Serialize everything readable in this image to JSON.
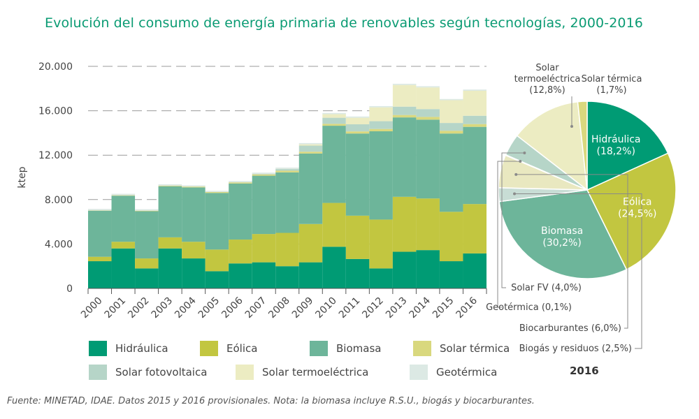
{
  "title": "Evolución del consumo de energía primaria de renovables según tecnologías, 2000-2016",
  "footnote": "Fuente: MINETAD, IDAE. Datos 2015 y 2016 provisionales. Nota: la biomasa incluye R.S.U., biogás y biocarburantes.",
  "colors": {
    "Hidráulica": "#009b74",
    "Eólica": "#c2c640",
    "Biomasa": "#6db59a",
    "Solar térmica": "#d9d87e",
    "Solar fotovoltaica": "#b6d5c8",
    "Solar termoeléctrica": "#ececc2",
    "Geotérmica": "#dce9e4",
    "Biocarburantes": "#e9e8c0",
    "Biogás y residuos": "#c8ddd5"
  },
  "legend": [
    {
      "name": "Hidráulica"
    },
    {
      "name": "Eólica"
    },
    {
      "name": "Biomasa"
    },
    {
      "name": "Solar térmica"
    },
    {
      "name": "Solar fotovoltaica"
    },
    {
      "name": "Solar termoeléctrica"
    },
    {
      "name": "Geotérmica"
    }
  ],
  "chart_data": [
    {
      "type": "bar",
      "stacked": true,
      "ylabel": "ktep",
      "ylim": [
        0,
        20000
      ],
      "yticks": [
        "0",
        "4.000",
        "8.000",
        "12.000",
        "16.000",
        "20.000"
      ],
      "grid": "dashed horizontal lines",
      "categories": [
        "2000",
        "2001",
        "2002",
        "2003",
        "2004",
        "2005",
        "2006",
        "2007",
        "2008",
        "2009",
        "2010",
        "2011",
        "2012",
        "2013",
        "2014",
        "2015",
        "2016"
      ],
      "series": [
        {
          "name": "Hidráulica",
          "values": [
            2450,
            3600,
            1800,
            3600,
            2700,
            1550,
            2250,
            2350,
            2000,
            2350,
            3750,
            2650,
            1800,
            3300,
            3450,
            2450,
            3150
          ]
        },
        {
          "name": "Eólica",
          "values": [
            400,
            600,
            900,
            1000,
            1500,
            1950,
            2150,
            2550,
            3000,
            3450,
            3950,
            3900,
            4400,
            4950,
            4650,
            4450,
            4450
          ]
        },
        {
          "name": "Biomasa",
          "values": [
            4150,
            4150,
            4250,
            4600,
            4900,
            5100,
            5050,
            5250,
            5450,
            6350,
            6950,
            7400,
            7950,
            7150,
            7100,
            7050,
            6950
          ]
        },
        {
          "name": "Solar térmica",
          "values": [
            30,
            40,
            50,
            60,
            70,
            80,
            100,
            120,
            150,
            160,
            170,
            190,
            210,
            220,
            250,
            250,
            250
          ]
        },
        {
          "name": "Solar fotovoltaica",
          "values": [
            0,
            0,
            0,
            0,
            0,
            0,
            10,
            40,
            150,
            550,
            550,
            640,
            700,
            750,
            700,
            700,
            750
          ]
        },
        {
          "name": "Solar termoeléctrica",
          "values": [
            0,
            0,
            0,
            0,
            0,
            0,
            0,
            10,
            20,
            120,
            320,
            590,
            1250,
            1950,
            1950,
            2050,
            2250
          ]
        },
        {
          "name": "Geotérmica",
          "values": [
            130,
            130,
            130,
            120,
            110,
            110,
            110,
            110,
            110,
            110,
            110,
            110,
            110,
            110,
            110,
            110,
            110
          ]
        }
      ]
    },
    {
      "type": "pie",
      "title": "2016",
      "slices": [
        {
          "name": "Hidráulica",
          "label": "Hidráulica",
          "pct_label": "(18,2%)",
          "value": 18.2,
          "label_placement": "inside"
        },
        {
          "name": "Eólica",
          "label": "Eólica",
          "pct_label": "(24,5%)",
          "value": 24.5,
          "label_placement": "inside"
        },
        {
          "name": "Biomasa",
          "label": "Biomasa",
          "pct_label": "(30,2%)",
          "value": 30.2,
          "label_placement": "inside"
        },
        {
          "name": "Biogás y residuos",
          "label": "Biogás y residuos (2,5%)",
          "value": 2.5,
          "label_placement": "outside"
        },
        {
          "name": "Biocarburantes",
          "label": "Biocarburantes (6,0%)",
          "value": 6.0,
          "label_placement": "outside"
        },
        {
          "name": "Geotérmica",
          "label": "Geotérmica (0,1%)",
          "value": 0.1,
          "label_placement": "outside"
        },
        {
          "name": "Solar fotovoltaica",
          "label": "Solar FV (4,0%)",
          "value": 4.0,
          "label_placement": "outside"
        },
        {
          "name": "Solar termoeléctrica",
          "label": "Solar termoeléctrica",
          "pct_label": "(12,8%)",
          "value": 12.8,
          "label_placement": "outside"
        },
        {
          "name": "Solar térmica",
          "label": "Solar térmica",
          "pct_label": "(1,7%)",
          "value": 1.7,
          "label_placement": "outside"
        }
      ]
    }
  ]
}
